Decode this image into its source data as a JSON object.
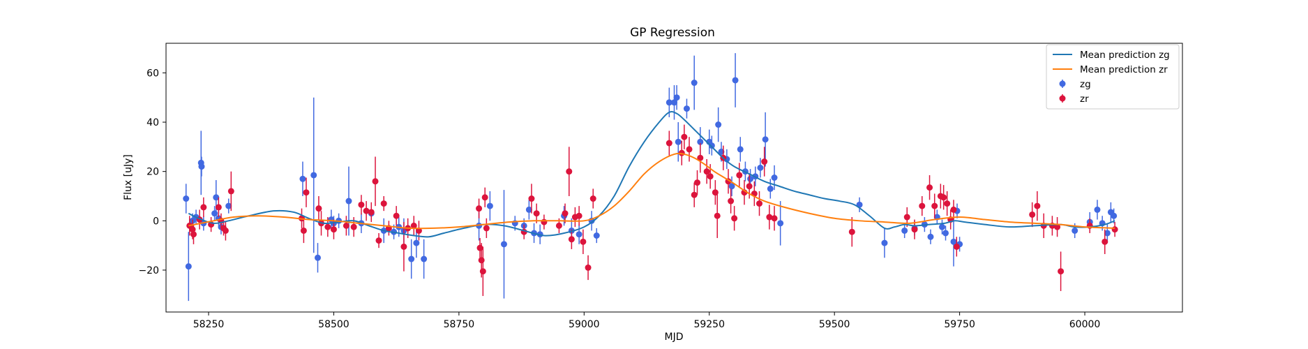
{
  "chart_data": {
    "type": "scatter",
    "title": "GP Regression",
    "xlabel": "MJD",
    "ylabel": "Flux [uJy]",
    "xlim": [
      58165,
      60195
    ],
    "ylim": [
      -37,
      72
    ],
    "xticks": [
      58250,
      58500,
      58750,
      59000,
      59250,
      59500,
      59750,
      60000
    ],
    "yticks": [
      -20,
      0,
      20,
      40,
      60
    ],
    "grid": false,
    "legend_position": "top-right",
    "legend": [
      "Mean prediction zg",
      "Mean prediction zr",
      "zg",
      "zr"
    ],
    "colors": {
      "zg_line": "#1f77b4",
      "zr_line": "#ff7f0e",
      "zg_points": "#4169e1",
      "zr_points": "#dc143c"
    },
    "series": [
      {
        "name": "Mean prediction zg",
        "kind": "line",
        "x": [
          58210,
          58230,
          58260,
          58290,
          58330,
          58380,
          58420,
          58450,
          58480,
          58510,
          58540,
          58570,
          58600,
          58630,
          58660,
          58690,
          58720,
          58760,
          58800,
          58840,
          58880,
          58920,
          58960,
          59000,
          59030,
          59060,
          59090,
          59120,
          59150,
          59170,
          59185,
          59200,
          59220,
          59240,
          59260,
          59280,
          59300,
          59330,
          59360,
          59390,
          59420,
          59450,
          59480,
          59510,
          59540,
          59570,
          59600,
          59620,
          59640,
          59660,
          59690,
          59720,
          59740,
          59760,
          59800,
          59850,
          59900,
          59950,
          59980,
          60010,
          60040,
          60060
        ],
        "y": [
          3,
          1,
          -1,
          0,
          2,
          4,
          3.5,
          1,
          -1,
          -0.5,
          0,
          -2,
          -4,
          -5,
          -6,
          -6.5,
          -5,
          -3,
          -1.5,
          -2,
          -4,
          -6,
          -5,
          -2.5,
          2,
          10,
          22,
          32,
          40,
          44,
          43.5,
          41,
          37,
          33,
          29,
          25,
          22,
          19,
          16,
          14,
          12,
          10.5,
          9,
          8,
          6.5,
          2,
          -3,
          -2.5,
          -1.5,
          -2,
          -1.5,
          -1,
          0,
          -0.5,
          -1.5,
          -2.5,
          -2,
          -1.5,
          -2.5,
          -2.5,
          -1.5,
          0
        ]
      },
      {
        "name": "Mean prediction zr",
        "kind": "line",
        "x": [
          58210,
          58260,
          58300,
          58350,
          58400,
          58450,
          58500,
          58550,
          58600,
          58650,
          58700,
          58750,
          58800,
          58850,
          58900,
          58950,
          59000,
          59030,
          59060,
          59090,
          59120,
          59150,
          59180,
          59200,
          59220,
          59240,
          59260,
          59280,
          59300,
          59330,
          59360,
          59400,
          59450,
          59500,
          59550,
          59600,
          59650,
          59700,
          59750,
          59800,
          59850,
          59900,
          59950,
          60000,
          60060
        ],
        "y": [
          -2,
          0,
          1.5,
          2,
          1.5,
          0.5,
          0,
          -1,
          -2,
          -3,
          -3,
          -2.5,
          -1.5,
          -0.5,
          0,
          0,
          0,
          2,
          6,
          12,
          19,
          24,
          27,
          27,
          25.5,
          23,
          20,
          17.5,
          15,
          11,
          8,
          5.5,
          3,
          1,
          0,
          -0.5,
          -1,
          0.5,
          1.5,
          0.5,
          -0.5,
          -1,
          -1.5,
          -2.5,
          -3
        ]
      },
      {
        "name": "zg",
        "kind": "errorbar",
        "points": [
          [
            58205,
            9,
            6
          ],
          [
            58210,
            -18.5,
            14
          ],
          [
            58218,
            0,
            3
          ],
          [
            58225,
            1.5,
            3
          ],
          [
            58235,
            23.5,
            13
          ],
          [
            58236,
            22,
            4
          ],
          [
            58240,
            -1,
            3
          ],
          [
            58262,
            3,
            3
          ],
          [
            58265,
            9.5,
            7
          ],
          [
            58270,
            1,
            3
          ],
          [
            58275,
            -2.5,
            3
          ],
          [
            58290,
            6,
            3
          ],
          [
            58438,
            17,
            7
          ],
          [
            58460,
            18.5,
            31.5
          ],
          [
            58468,
            -15,
            6
          ],
          [
            58495,
            0.5,
            4
          ],
          [
            58500,
            -1,
            3
          ],
          [
            58510,
            0,
            3
          ],
          [
            58530,
            8,
            14
          ],
          [
            58555,
            -1,
            4
          ],
          [
            58575,
            3,
            3
          ],
          [
            58600,
            -4,
            5
          ],
          [
            58620,
            -4.5,
            3
          ],
          [
            58630,
            -2.5,
            4
          ],
          [
            58640,
            -4,
            5
          ],
          [
            58655,
            -15.5,
            8
          ],
          [
            58665,
            -9,
            6
          ],
          [
            58680,
            -15.5,
            8
          ],
          [
            58790,
            -2,
            6
          ],
          [
            58812,
            6,
            6
          ],
          [
            58840,
            -9.5,
            22
          ],
          [
            58862,
            -1,
            3
          ],
          [
            58880,
            -2,
            3
          ],
          [
            58890,
            4.5,
            4
          ],
          [
            58900,
            -5,
            4
          ],
          [
            58912,
            -5.5,
            4
          ],
          [
            58960,
            2,
            4
          ],
          [
            58975,
            -4,
            5
          ],
          [
            58990,
            -5.5,
            4
          ],
          [
            59015,
            0,
            4
          ],
          [
            59025,
            -6,
            3
          ],
          [
            59170,
            48,
            6
          ],
          [
            59180,
            48,
            7
          ],
          [
            59185,
            50,
            5
          ],
          [
            59188,
            32,
            8
          ],
          [
            59205,
            45.5,
            4
          ],
          [
            59220,
            56,
            11
          ],
          [
            59232,
            32,
            6
          ],
          [
            59250,
            32,
            5
          ],
          [
            59255,
            30.5,
            4
          ],
          [
            59268,
            39,
            7
          ],
          [
            59274,
            28,
            4
          ],
          [
            59285,
            25,
            4
          ],
          [
            59295,
            14,
            4
          ],
          [
            59302,
            57,
            11
          ],
          [
            59312,
            29,
            5
          ],
          [
            59322,
            20,
            4
          ],
          [
            59332,
            17,
            4
          ],
          [
            59342,
            18,
            4
          ],
          [
            59352,
            21.5,
            4
          ],
          [
            59362,
            33,
            11
          ],
          [
            59372,
            13,
            4
          ],
          [
            59380,
            17.5,
            5
          ],
          [
            59392,
            -1,
            9
          ],
          [
            59550,
            6.5,
            3
          ],
          [
            59600,
            -9,
            6
          ],
          [
            59640,
            -4,
            3
          ],
          [
            59660,
            -3,
            3
          ],
          [
            59680,
            -1.5,
            3
          ],
          [
            59692,
            -6.5,
            3
          ],
          [
            59705,
            1.5,
            3
          ],
          [
            59715,
            -2.5,
            3
          ],
          [
            59722,
            -5,
            3
          ],
          [
            59738,
            -8.5,
            10
          ],
          [
            59745,
            4,
            3
          ],
          [
            59750,
            -9.5,
            3
          ],
          [
            59980,
            -4,
            3
          ],
          [
            60010,
            -0.5,
            4
          ],
          [
            60025,
            4.5,
            4
          ],
          [
            60035,
            -1,
            3
          ],
          [
            60045,
            -5,
            4
          ],
          [
            60052,
            3.5,
            4
          ],
          [
            60058,
            2,
            3
          ]
        ]
      },
      {
        "name": "zr",
        "kind": "errorbar",
        "points": [
          [
            58212,
            -2,
            4
          ],
          [
            58218,
            -3.5,
            4
          ],
          [
            58220,
            -5.5,
            4
          ],
          [
            58232,
            0.5,
            4
          ],
          [
            58240,
            5.5,
            4
          ],
          [
            58255,
            -1.5,
            3
          ],
          [
            58270,
            5.5,
            4
          ],
          [
            58275,
            0,
            3
          ],
          [
            58280,
            -3,
            3
          ],
          [
            58284,
            -4,
            4
          ],
          [
            58295,
            12,
            8
          ],
          [
            58436,
            1,
            4
          ],
          [
            58440,
            -4,
            5
          ],
          [
            58445,
            11.5,
            6
          ],
          [
            58470,
            5,
            5
          ],
          [
            58475,
            -1,
            5
          ],
          [
            58488,
            -2.5,
            4
          ],
          [
            58500,
            -3.5,
            4
          ],
          [
            58525,
            -2,
            4
          ],
          [
            58540,
            -2.5,
            4
          ],
          [
            58555,
            6.5,
            4
          ],
          [
            58565,
            4,
            4
          ],
          [
            58575,
            3.5,
            4
          ],
          [
            58583,
            16,
            10
          ],
          [
            58590,
            -8,
            3
          ],
          [
            58600,
            7,
            3
          ],
          [
            58610,
            -3,
            3
          ],
          [
            58625,
            2,
            4
          ],
          [
            58640,
            -10.5,
            10
          ],
          [
            58648,
            -3,
            4
          ],
          [
            58660,
            -2,
            4
          ],
          [
            58670,
            -4,
            4
          ],
          [
            58790,
            5,
            4
          ],
          [
            58792,
            -11,
            4
          ],
          [
            58795,
            -16,
            7
          ],
          [
            58798,
            -20.5,
            10
          ],
          [
            58802,
            9.5,
            4
          ],
          [
            58805,
            -3,
            4
          ],
          [
            58880,
            -4.5,
            3
          ],
          [
            58895,
            9,
            6
          ],
          [
            58905,
            3,
            4
          ],
          [
            58920,
            -0.5,
            3
          ],
          [
            58950,
            -2,
            3
          ],
          [
            58962,
            3,
            4
          ],
          [
            58970,
            20,
            10
          ],
          [
            58975,
            -7.5,
            4
          ],
          [
            58982,
            1.5,
            4
          ],
          [
            58990,
            2,
            4
          ],
          [
            58998,
            -8.5,
            5
          ],
          [
            59008,
            -19,
            5
          ],
          [
            59018,
            9,
            4
          ],
          [
            59170,
            31.5,
            5
          ],
          [
            59195,
            27.5,
            5
          ],
          [
            59200,
            34,
            5
          ],
          [
            59210,
            29,
            5
          ],
          [
            59220,
            10.5,
            5
          ],
          [
            59226,
            15.5,
            5
          ],
          [
            59232,
            25.5,
            6
          ],
          [
            59245,
            20,
            5
          ],
          [
            59252,
            18,
            5
          ],
          [
            59262,
            11.5,
            5
          ],
          [
            59266,
            2,
            9
          ],
          [
            59278,
            25.5,
            5
          ],
          [
            59288,
            16,
            5
          ],
          [
            59293,
            8,
            5
          ],
          [
            59300,
            1,
            5
          ],
          [
            59310,
            18.5,
            5
          ],
          [
            59320,
            11.5,
            5
          ],
          [
            59330,
            14,
            5
          ],
          [
            59340,
            11,
            5
          ],
          [
            59350,
            7,
            5
          ],
          [
            59360,
            24,
            6
          ],
          [
            59370,
            1.5,
            5
          ],
          [
            59380,
            1,
            5
          ],
          [
            59535,
            -4.5,
            6
          ],
          [
            59645,
            1.5,
            4
          ],
          [
            59660,
            -3.5,
            4
          ],
          [
            59675,
            6,
            4
          ],
          [
            59690,
            13.5,
            5
          ],
          [
            59700,
            6,
            5
          ],
          [
            59712,
            10,
            5
          ],
          [
            59718,
            9.5,
            5
          ],
          [
            59725,
            7,
            5
          ],
          [
            59732,
            0.5,
            4
          ],
          [
            59738,
            4.5,
            4
          ],
          [
            59744,
            -10.5,
            4
          ],
          [
            59895,
            2.5,
            5
          ],
          [
            59905,
            6,
            6
          ],
          [
            59918,
            -2,
            5
          ],
          [
            59935,
            -2,
            4
          ],
          [
            59945,
            -2.5,
            4
          ],
          [
            59952,
            -20.5,
            8
          ],
          [
            60010,
            -2,
            3
          ],
          [
            60040,
            -8.5,
            5
          ],
          [
            60060,
            -3.5,
            3
          ]
        ]
      }
    ]
  }
}
